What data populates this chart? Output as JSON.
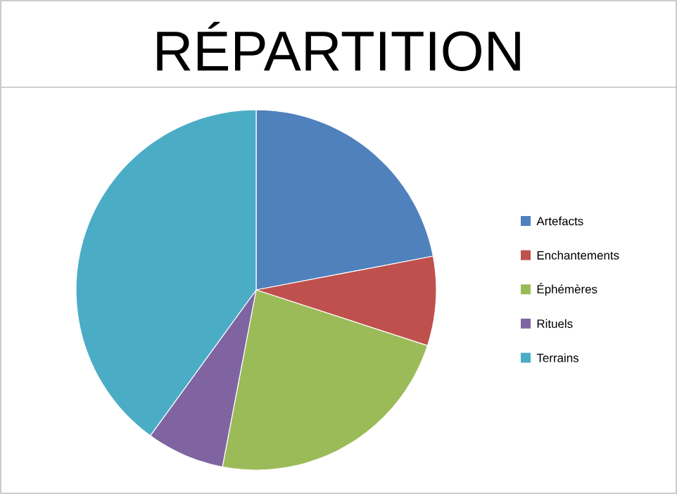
{
  "chart_data": {
    "type": "pie",
    "title": "RÉPARTITION",
    "categories": [
      "Artefacts",
      "Enchantements",
      "Éphémères",
      "Rituels",
      "Terrains"
    ],
    "values": [
      22,
      8,
      23,
      7,
      40
    ],
    "colors": [
      "#4f81bd",
      "#c0504d",
      "#9bbb59",
      "#8064a2",
      "#4bacc6"
    ],
    "legend": "right"
  }
}
